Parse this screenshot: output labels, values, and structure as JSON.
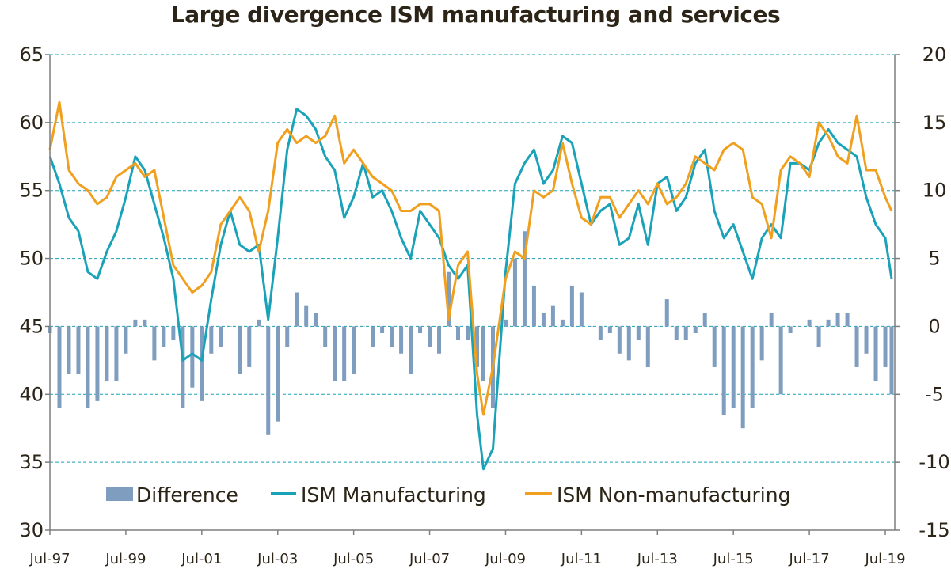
{
  "chart_data": {
    "type": "bar+line",
    "title": "Large divergence ISM manufacturing and services",
    "left_axis": {
      "ylim": [
        30,
        65
      ],
      "ticks": [
        "30",
        "35",
        "40",
        "45",
        "50",
        "55",
        "60",
        "65"
      ]
    },
    "right_axis": {
      "ylim": [
        -15,
        20
      ],
      "ticks": [
        "-15",
        "-10",
        "-5",
        "0",
        "5",
        "10",
        "15",
        "20"
      ]
    },
    "x_range": [
      "1997-07",
      "2019-10"
    ],
    "x_ticks": [
      "Jul-97",
      "Jul-99",
      "Jul-01",
      "Jul-03",
      "Jul-05",
      "Jul-07",
      "Jul-09",
      "Jul-11",
      "Jul-13",
      "Jul-15",
      "Jul-17",
      "Jul-19"
    ],
    "grid": "horizontal dashed",
    "legend_position": "bottom",
    "colors": {
      "difference": "#7f9dbf",
      "manufacturing": "#1aa3b8",
      "non_manufacturing": "#f0a01e",
      "grid": "#1aa3b8",
      "axis": "#7f7f7f"
    },
    "series": [
      {
        "name": "ISM Manufacturing",
        "axis": "left",
        "x": [
          "1997-07",
          "1997-10",
          "1998-01",
          "1998-04",
          "1998-07",
          "1998-10",
          "1999-01",
          "1999-04",
          "1999-07",
          "1999-10",
          "2000-01",
          "2000-04",
          "2000-07",
          "2000-10",
          "2001-01",
          "2001-04",
          "2001-07",
          "2001-10",
          "2002-01",
          "2002-04",
          "2002-07",
          "2002-10",
          "2003-01",
          "2003-04",
          "2003-07",
          "2003-10",
          "2004-01",
          "2004-04",
          "2004-07",
          "2004-10",
          "2005-01",
          "2005-04",
          "2005-07",
          "2005-10",
          "2006-01",
          "2006-04",
          "2006-07",
          "2006-10",
          "2007-01",
          "2007-04",
          "2007-07",
          "2007-10",
          "2008-01",
          "2008-04",
          "2008-07",
          "2008-10",
          "2008-12",
          "2009-03",
          "2009-07",
          "2009-10",
          "2010-01",
          "2010-04",
          "2010-07",
          "2010-10",
          "2011-01",
          "2011-04",
          "2011-07",
          "2011-10",
          "2012-01",
          "2012-04",
          "2012-07",
          "2012-10",
          "2013-01",
          "2013-04",
          "2013-07",
          "2013-10",
          "2014-01",
          "2014-04",
          "2014-07",
          "2014-10",
          "2015-01",
          "2015-04",
          "2015-07",
          "2015-10",
          "2016-01",
          "2016-04",
          "2016-07",
          "2016-10",
          "2017-01",
          "2017-04",
          "2017-07",
          "2017-10",
          "2018-01",
          "2018-04",
          "2018-07",
          "2018-10",
          "2019-01",
          "2019-04",
          "2019-07",
          "2019-09"
        ],
        "values": [
          57.5,
          55.5,
          53.0,
          52.0,
          49.0,
          48.5,
          50.5,
          52.0,
          54.5,
          57.5,
          56.5,
          54.0,
          51.5,
          48.5,
          42.5,
          43.0,
          42.5,
          47.0,
          51.0,
          53.5,
          51.0,
          50.5,
          51.0,
          45.5,
          51.5,
          58.0,
          61.0,
          60.5,
          59.5,
          57.5,
          56.5,
          53.0,
          54.5,
          57.0,
          54.5,
          55.0,
          53.5,
          51.5,
          50.0,
          53.5,
          52.5,
          51.5,
          49.5,
          48.5,
          49.5,
          38.5,
          34.5,
          36.0,
          49.0,
          55.5,
          57.0,
          58.0,
          55.5,
          56.5,
          59.0,
          58.5,
          55.5,
          52.5,
          53.5,
          54.0,
          51.0,
          51.5,
          54.0,
          51.0,
          55.5,
          56.0,
          53.5,
          54.5,
          57.0,
          58.0,
          53.5,
          51.5,
          52.5,
          50.5,
          48.5,
          51.5,
          52.5,
          51.5,
          57.0,
          57.0,
          56.5,
          58.5,
          59.5,
          58.5,
          58.0,
          57.5,
          54.5,
          52.5,
          51.5,
          48.5
        ]
      },
      {
        "name": "ISM Non-manufacturing",
        "axis": "left",
        "x": [
          "1997-07",
          "1997-10",
          "1998-01",
          "1998-04",
          "1998-07",
          "1998-10",
          "1999-01",
          "1999-04",
          "1999-07",
          "1999-10",
          "2000-01",
          "2000-04",
          "2000-07",
          "2000-10",
          "2001-01",
          "2001-04",
          "2001-07",
          "2001-10",
          "2002-01",
          "2002-04",
          "2002-07",
          "2002-10",
          "2003-01",
          "2003-04",
          "2003-07",
          "2003-10",
          "2004-01",
          "2004-04",
          "2004-07",
          "2004-10",
          "2005-01",
          "2005-04",
          "2005-07",
          "2005-10",
          "2006-01",
          "2006-04",
          "2006-07",
          "2006-10",
          "2007-01",
          "2007-04",
          "2007-07",
          "2007-10",
          "2008-01",
          "2008-04",
          "2008-07",
          "2008-10",
          "2008-12",
          "2009-03",
          "2009-07",
          "2009-10",
          "2010-01",
          "2010-04",
          "2010-07",
          "2010-10",
          "2011-01",
          "2011-04",
          "2011-07",
          "2011-10",
          "2012-01",
          "2012-04",
          "2012-07",
          "2012-10",
          "2013-01",
          "2013-04",
          "2013-07",
          "2013-10",
          "2014-01",
          "2014-04",
          "2014-07",
          "2014-10",
          "2015-01",
          "2015-04",
          "2015-07",
          "2015-10",
          "2016-01",
          "2016-04",
          "2016-07",
          "2016-10",
          "2017-01",
          "2017-04",
          "2017-07",
          "2017-10",
          "2018-01",
          "2018-04",
          "2018-07",
          "2018-10",
          "2019-01",
          "2019-04",
          "2019-07",
          "2019-09"
        ],
        "values": [
          58.0,
          61.5,
          56.5,
          55.5,
          55.0,
          54.0,
          54.5,
          56.0,
          56.5,
          57.0,
          56.0,
          56.5,
          53.0,
          49.5,
          48.5,
          47.5,
          48.0,
          49.0,
          52.5,
          53.5,
          54.5,
          53.5,
          50.5,
          53.5,
          58.5,
          59.5,
          58.5,
          59.0,
          58.5,
          59.0,
          60.5,
          57.0,
          58.0,
          57.0,
          56.0,
          55.5,
          55.0,
          53.5,
          53.5,
          54.0,
          54.0,
          53.5,
          45.5,
          49.5,
          50.5,
          41.5,
          38.5,
          42.0,
          48.5,
          50.5,
          50.0,
          55.0,
          54.5,
          55.0,
          58.5,
          55.5,
          53.0,
          52.5,
          54.5,
          54.5,
          53.0,
          54.0,
          55.0,
          54.0,
          55.5,
          54.0,
          54.5,
          55.5,
          57.5,
          57.0,
          56.5,
          58.0,
          58.5,
          58.0,
          54.5,
          54.0,
          51.5,
          56.5,
          57.5,
          57.0,
          56.0,
          60.0,
          59.0,
          57.5,
          57.0,
          60.5,
          56.5,
          56.5,
          54.5,
          53.5
        ]
      },
      {
        "name": "Difference",
        "axis": "right",
        "x": [
          "1997-07",
          "1997-10",
          "1998-01",
          "1998-04",
          "1998-07",
          "1998-10",
          "1999-01",
          "1999-04",
          "1999-07",
          "1999-10",
          "2000-01",
          "2000-04",
          "2000-07",
          "2000-10",
          "2001-01",
          "2001-04",
          "2001-07",
          "2001-10",
          "2002-01",
          "2002-04",
          "2002-07",
          "2002-10",
          "2003-01",
          "2003-04",
          "2003-07",
          "2003-10",
          "2004-01",
          "2004-04",
          "2004-07",
          "2004-10",
          "2005-01",
          "2005-04",
          "2005-07",
          "2005-10",
          "2006-01",
          "2006-04",
          "2006-07",
          "2006-10",
          "2007-01",
          "2007-04",
          "2007-07",
          "2007-10",
          "2008-01",
          "2008-04",
          "2008-07",
          "2008-10",
          "2008-12",
          "2009-03",
          "2009-07",
          "2009-10",
          "2010-01",
          "2010-04",
          "2010-07",
          "2010-10",
          "2011-01",
          "2011-04",
          "2011-07",
          "2011-10",
          "2012-01",
          "2012-04",
          "2012-07",
          "2012-10",
          "2013-01",
          "2013-04",
          "2013-07",
          "2013-10",
          "2014-01",
          "2014-04",
          "2014-07",
          "2014-10",
          "2015-01",
          "2015-04",
          "2015-07",
          "2015-10",
          "2016-01",
          "2016-04",
          "2016-07",
          "2016-10",
          "2017-01",
          "2017-04",
          "2017-07",
          "2017-10",
          "2018-01",
          "2018-04",
          "2018-07",
          "2018-10",
          "2019-01",
          "2019-04",
          "2019-07",
          "2019-09"
        ],
        "values": [
          -0.5,
          -6.0,
          -3.5,
          -3.5,
          -6.0,
          -5.5,
          -4.0,
          -4.0,
          -2.0,
          0.5,
          0.5,
          -2.5,
          -1.5,
          -1.0,
          -6.0,
          -4.5,
          -5.5,
          -2.0,
          -1.5,
          0.0,
          -3.5,
          -3.0,
          0.5,
          -8.0,
          -7.0,
          -1.5,
          2.5,
          1.5,
          1.0,
          -1.5,
          -4.0,
          -4.0,
          -3.5,
          0.0,
          -1.5,
          -0.5,
          -1.5,
          -2.0,
          -3.5,
          -0.5,
          -1.5,
          -2.0,
          4.0,
          -1.0,
          -1.0,
          -3.0,
          -4.0,
          -6.0,
          0.5,
          5.0,
          7.0,
          3.0,
          1.0,
          1.5,
          0.5,
          3.0,
          2.5,
          0.0,
          -1.0,
          -0.5,
          -2.0,
          -2.5,
          -1.0,
          -3.0,
          0.0,
          2.0,
          -1.0,
          -1.0,
          -0.5,
          1.0,
          -3.0,
          -6.5,
          -6.0,
          -7.5,
          -6.0,
          -2.5,
          1.0,
          -5.0,
          -0.5,
          0.0,
          0.5,
          -1.5,
          0.5,
          1.0,
          1.0,
          -3.0,
          -2.0,
          -4.0,
          -3.0,
          -5.0
        ]
      }
    ]
  }
}
